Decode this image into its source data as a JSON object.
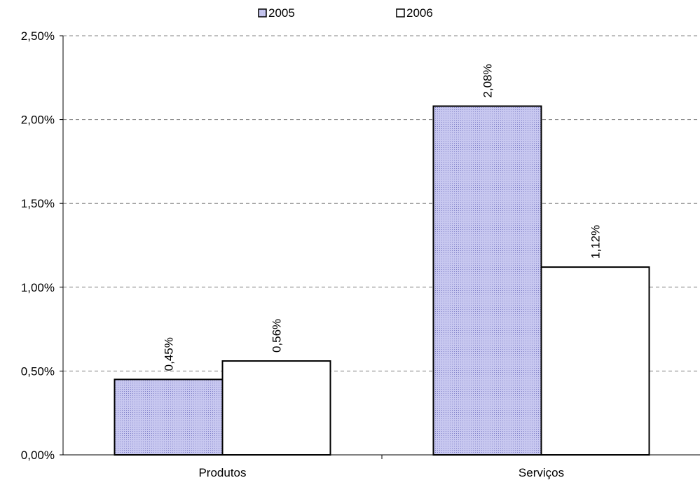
{
  "chart_data": {
    "type": "bar",
    "categories": [
      "Produtos",
      "Serviços"
    ],
    "series": [
      {
        "name": "2005",
        "values": [
          0.45,
          2.08
        ],
        "labels": [
          "0,45%",
          "2,08%"
        ],
        "fill": "pattern-blue"
      },
      {
        "name": "2006",
        "values": [
          0.56,
          1.12
        ],
        "labels": [
          "0,56%",
          "1,12%"
        ],
        "fill": "white"
      }
    ],
    "ylim": [
      0,
      2.5
    ],
    "y_ticks": [
      0,
      0.5,
      1.0,
      1.5,
      2.0,
      2.5
    ],
    "y_tick_labels": [
      "0,00%",
      "0,50%",
      "1,00%",
      "1,50%",
      "2,00%",
      "2,50%"
    ],
    "title": "",
    "xlabel": "",
    "ylabel": "",
    "grid": "horizontal-dashed",
    "legend_position": "top-center",
    "colors": {
      "bar_2005_base": "#c8c8f0",
      "bar_2005_dot": "#8080c8",
      "bar_2006": "#ffffff",
      "outline": "#000000",
      "grid": "#808080"
    }
  }
}
